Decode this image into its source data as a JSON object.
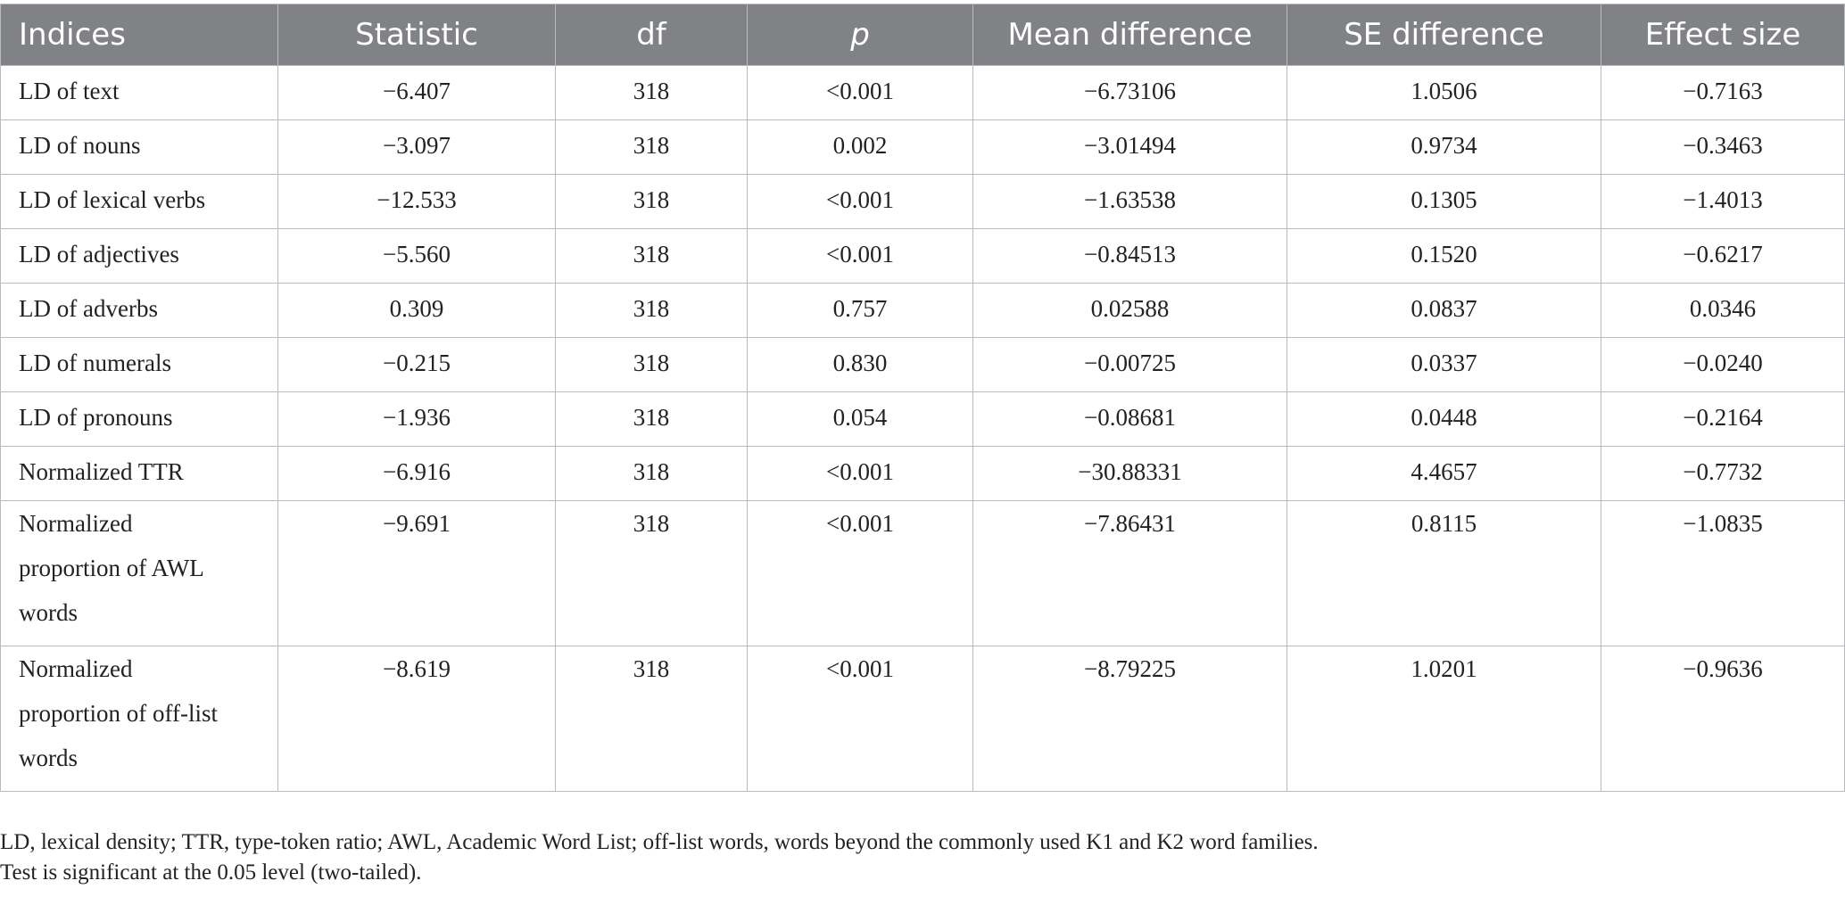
{
  "table": {
    "headers": [
      "Indices",
      "Statistic",
      "df",
      "p",
      "Mean difference",
      "SE difference",
      "Effect size"
    ],
    "rows": [
      [
        "LD of text",
        "−6.407",
        "318",
        "<0.001",
        "−6.73106",
        "1.0506",
        "−0.7163"
      ],
      [
        "LD of nouns",
        "−3.097",
        "318",
        "0.002",
        "−3.01494",
        "0.9734",
        "−0.3463"
      ],
      [
        "LD of lexical verbs",
        "−12.533",
        "318",
        "<0.001",
        "−1.63538",
        "0.1305",
        "−1.4013"
      ],
      [
        "LD of adjectives",
        "−5.560",
        "318",
        "<0.001",
        "−0.84513",
        "0.1520",
        "−0.6217"
      ],
      [
        "LD of adverbs",
        "0.309",
        "318",
        "0.757",
        "0.02588",
        "0.0837",
        "0.0346"
      ],
      [
        "LD of numerals",
        "−0.215",
        "318",
        "0.830",
        "−0.00725",
        "0.0337",
        "−0.0240"
      ],
      [
        "LD of pronouns",
        "−1.936",
        "318",
        "0.054",
        "−0.08681",
        "0.0448",
        "−0.2164"
      ],
      [
        "Normalized TTR",
        "−6.916",
        "318",
        "<0.001",
        "−30.88331",
        "4.4657",
        "−0.7732"
      ]
    ],
    "multiline_rows": [
      {
        "label_lines": [
          "Normalized",
          "proportion of AWL",
          "words"
        ],
        "values": [
          "−9.691",
          "318",
          "<0.001",
          "−7.86431",
          "0.8115",
          "−1.0835"
        ]
      },
      {
        "label_lines": [
          "Normalized",
          "proportion of off-list",
          "words"
        ],
        "values": [
          "−8.619",
          "318",
          "<0.001",
          "−8.79225",
          "1.0201",
          "−0.9636"
        ]
      }
    ]
  },
  "notes": {
    "line1": "LD, lexical density; TTR, type-token ratio; AWL, Academic Word List; off-list words, words beyond the commonly used K1 and K2 word families.",
    "line2": "Test is significant at the 0.05 level (two-tailed)."
  }
}
